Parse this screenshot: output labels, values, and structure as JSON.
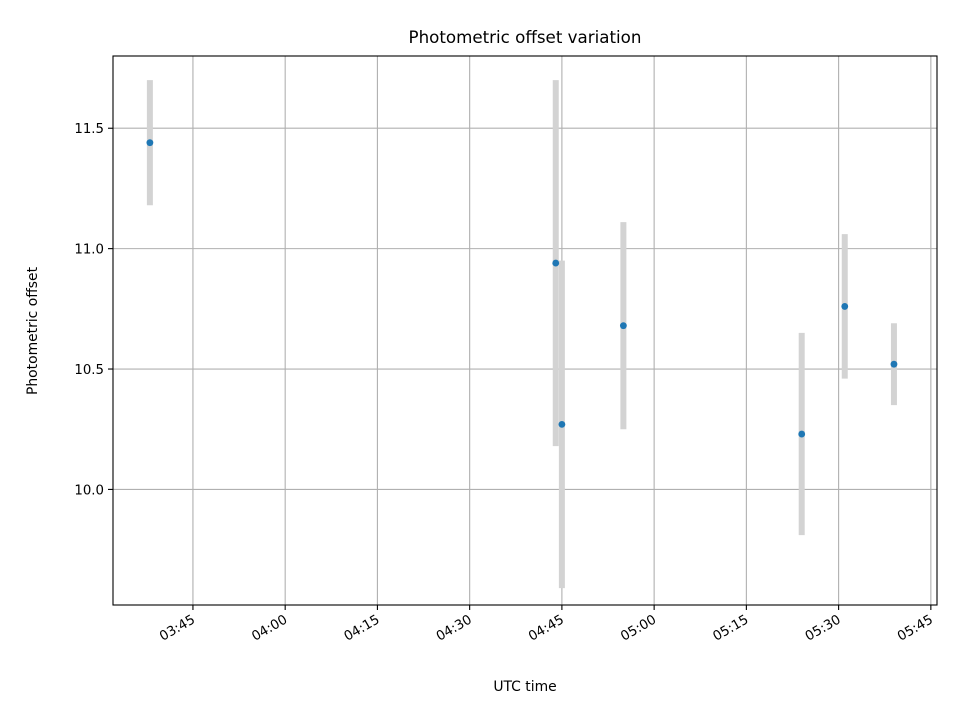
{
  "chart_data": {
    "type": "scatter",
    "title": "Photometric offset variation",
    "xlabel": "UTC time",
    "ylabel": "Photometric offset",
    "x_ticks": [
      "03:45",
      "04:00",
      "04:15",
      "04:30",
      "04:45",
      "05:00",
      "05:15",
      "05:30",
      "05:45"
    ],
    "y_ticks": [
      "10.0",
      "10.5",
      "11.0",
      "11.5"
    ],
    "xlim": [
      "03:32",
      "05:46"
    ],
    "ylim": [
      9.52,
      11.8
    ],
    "grid": true,
    "colors": {
      "point": "#1f77b4",
      "errorbar": "#d3d3d3",
      "grid": "#b0b0b0"
    },
    "points": [
      {
        "x": "03:38",
        "y": 11.44,
        "yerr": 0.26
      },
      {
        "x": "04:44",
        "y": 10.94,
        "yerr": 0.76
      },
      {
        "x": "04:45",
        "y": 10.27,
        "yerr": 0.68
      },
      {
        "x": "04:55",
        "y": 10.68,
        "yerr": 0.43
      },
      {
        "x": "05:24",
        "y": 10.23,
        "yerr": 0.42
      },
      {
        "x": "05:31",
        "y": 10.76,
        "yerr": 0.3
      },
      {
        "x": "05:39",
        "y": 10.52,
        "yerr": 0.17
      }
    ]
  }
}
